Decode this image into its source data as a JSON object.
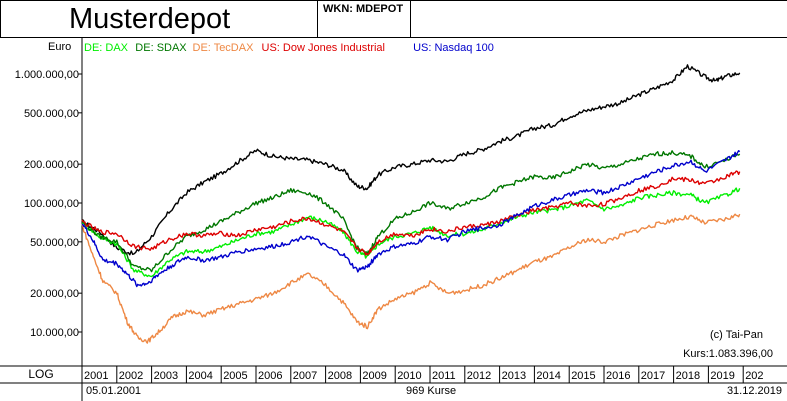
{
  "header": {
    "title": "Musterdepot",
    "wkn": "WKN: MDEPOT"
  },
  "footer": {
    "scale_label": "LOG",
    "start_date": "05.01.2001",
    "count": "969 Kurse",
    "end_date": "31.12.2019",
    "copyright": "(c) Tai-Pan",
    "kurs": "Kurs:1.083.396,00"
  },
  "chart_data": {
    "type": "line",
    "scale": "log",
    "ylabel": "Euro",
    "ylim": [
      6500,
      1600000
    ],
    "xlim": [
      2001.0,
      2020.0
    ],
    "y_ticks": [
      {
        "value": 10000,
        "label": "10.000,00"
      },
      {
        "value": 20000,
        "label": "20.000,00"
      },
      {
        "value": 50000,
        "label": "50.000,00"
      },
      {
        "value": 100000,
        "label": "100.000,00"
      },
      {
        "value": 200000,
        "label": "200.000,00"
      },
      {
        "value": 500000,
        "label": "500.000,00"
      },
      {
        "value": 1000000,
        "label": "1.000.000,00"
      }
    ],
    "x_ticks": [
      "2001",
      "2002",
      "2003",
      "2004",
      "2005",
      "2006",
      "2007",
      "2008",
      "2009",
      "2010",
      "2011",
      "2012",
      "2013",
      "2014",
      "2015",
      "2016",
      "2017",
      "2018",
      "2019",
      "202"
    ],
    "legend_position": "top-left",
    "grid": false,
    "series": [
      {
        "name": "Musterdepot",
        "color": "#000000",
        "legend": false,
        "x": [
          2001.0,
          2001.5,
          2002.0,
          2002.5,
          2003.0,
          2003.5,
          2004.0,
          2004.5,
          2005.0,
          2005.5,
          2006.0,
          2006.5,
          2007.0,
          2007.5,
          2008.0,
          2008.5,
          2008.9,
          2009.2,
          2009.5,
          2010.0,
          2010.5,
          2011.0,
          2011.5,
          2012.0,
          2012.5,
          2013.0,
          2013.5,
          2014.0,
          2014.5,
          2015.0,
          2015.5,
          2016.0,
          2016.5,
          2017.0,
          2017.5,
          2018.0,
          2018.4,
          2018.9,
          2019.2,
          2019.5,
          2019.9
        ],
        "y": [
          72000,
          60000,
          45000,
          40000,
          55000,
          85000,
          120000,
          145000,
          170000,
          210000,
          255000,
          230000,
          220000,
          215000,
          200000,
          180000,
          135000,
          130000,
          165000,
          190000,
          200000,
          215000,
          210000,
          240000,
          260000,
          300000,
          330000,
          380000,
          400000,
          470000,
          520000,
          560000,
          600000,
          690000,
          780000,
          900000,
          1150000,
          950000,
          880000,
          960000,
          1020000
        ]
      },
      {
        "name": "DE: DAX",
        "color": "#00ee00",
        "legend": true,
        "x": [
          2001.0,
          2001.5,
          2002.0,
          2002.5,
          2003.0,
          2003.5,
          2004.0,
          2004.5,
          2005.0,
          2005.5,
          2006.0,
          2006.5,
          2007.0,
          2007.5,
          2008.0,
          2008.5,
          2008.9,
          2009.2,
          2009.5,
          2010.0,
          2010.5,
          2011.0,
          2011.5,
          2012.0,
          2012.5,
          2013.0,
          2013.5,
          2014.0,
          2014.5,
          2015.0,
          2015.5,
          2016.0,
          2016.5,
          2017.0,
          2017.5,
          2018.0,
          2018.5,
          2018.9,
          2019.5,
          2019.9
        ],
        "y": [
          70000,
          55000,
          48000,
          30000,
          27000,
          36000,
          42000,
          42000,
          46000,
          52000,
          58000,
          60000,
          68000,
          78000,
          72000,
          60000,
          42000,
          38000,
          48000,
          55000,
          58000,
          65000,
          56000,
          58000,
          62000,
          70000,
          78000,
          85000,
          88000,
          95000,
          105000,
          90000,
          95000,
          110000,
          115000,
          120000,
          115000,
          100000,
          115000,
          130000
        ]
      },
      {
        "name": "DE: SDAX",
        "color": "#007700",
        "legend": true,
        "x": [
          2001.0,
          2001.5,
          2002.0,
          2002.5,
          2003.0,
          2003.5,
          2004.0,
          2004.5,
          2005.0,
          2005.5,
          2006.0,
          2006.5,
          2007.0,
          2007.5,
          2008.0,
          2008.5,
          2008.9,
          2009.2,
          2009.5,
          2010.0,
          2010.5,
          2011.0,
          2011.5,
          2012.0,
          2012.5,
          2013.0,
          2013.5,
          2014.0,
          2014.5,
          2015.0,
          2015.5,
          2016.0,
          2016.5,
          2017.0,
          2017.5,
          2018.0,
          2018.5,
          2018.9,
          2019.5,
          2019.9
        ],
        "y": [
          72000,
          55000,
          50000,
          32000,
          30000,
          42000,
          55000,
          62000,
          72000,
          85000,
          100000,
          110000,
          125000,
          120000,
          100000,
          75000,
          45000,
          40000,
          55000,
          75000,
          85000,
          100000,
          90000,
          100000,
          110000,
          130000,
          145000,
          160000,
          155000,
          175000,
          200000,
          185000,
          200000,
          220000,
          240000,
          245000,
          230000,
          190000,
          215000,
          240000
        ]
      },
      {
        "name": "DE: TecDAX",
        "color": "#ee8844",
        "legend": true,
        "x": [
          2001.0,
          2001.3,
          2001.6,
          2002.0,
          2002.3,
          2002.6,
          2002.9,
          2003.2,
          2003.6,
          2004.0,
          2004.5,
          2005.0,
          2005.5,
          2006.0,
          2006.5,
          2007.0,
          2007.5,
          2008.0,
          2008.5,
          2008.9,
          2009.2,
          2009.5,
          2010.0,
          2010.5,
          2011.0,
          2011.5,
          2012.0,
          2012.5,
          2013.0,
          2013.5,
          2014.0,
          2014.5,
          2015.0,
          2015.5,
          2016.0,
          2016.5,
          2017.0,
          2017.5,
          2018.0,
          2018.5,
          2018.9,
          2019.5,
          2019.9
        ],
        "y": [
          68000,
          40000,
          25000,
          20000,
          12000,
          9000,
          8500,
          10000,
          13000,
          14500,
          13500,
          15000,
          16500,
          18000,
          20000,
          24000,
          28000,
          23000,
          17000,
          12000,
          11000,
          15000,
          18000,
          20000,
          24000,
          20000,
          21000,
          23000,
          26000,
          30000,
          35000,
          38000,
          45000,
          52000,
          50000,
          56000,
          62000,
          68000,
          74000,
          78000,
          70000,
          75000,
          82000
        ]
      },
      {
        "name": "US: Dow Jones Industrial",
        "color": "#dd0000",
        "legend": true,
        "x": [
          2001.0,
          2001.5,
          2002.0,
          2002.5,
          2003.0,
          2003.5,
          2004.0,
          2004.5,
          2005.0,
          2005.5,
          2006.0,
          2006.5,
          2007.0,
          2007.5,
          2008.0,
          2008.5,
          2008.9,
          2009.2,
          2009.5,
          2010.0,
          2010.5,
          2011.0,
          2011.5,
          2012.0,
          2012.5,
          2013.0,
          2013.5,
          2014.0,
          2014.5,
          2015.0,
          2015.5,
          2016.0,
          2016.5,
          2017.0,
          2017.5,
          2018.0,
          2018.5,
          2018.9,
          2019.5,
          2019.9
        ],
        "y": [
          72000,
          60000,
          58000,
          46000,
          44000,
          52000,
          58000,
          56000,
          58000,
          56000,
          62000,
          65000,
          72000,
          76000,
          68000,
          60000,
          45000,
          40000,
          50000,
          58000,
          56000,
          63000,
          60000,
          65000,
          67000,
          72000,
          80000,
          88000,
          92000,
          100000,
          95000,
          98000,
          110000,
          125000,
          135000,
          155000,
          150000,
          140000,
          160000,
          175000
        ]
      },
      {
        "name": "US: Nasdaq 100",
        "color": "#0000cc",
        "legend": true,
        "x": [
          2001.0,
          2001.3,
          2001.6,
          2002.0,
          2002.3,
          2002.6,
          2002.9,
          2003.2,
          2003.6,
          2004.0,
          2004.5,
          2005.0,
          2005.5,
          2006.0,
          2006.5,
          2007.0,
          2007.5,
          2008.0,
          2008.5,
          2008.9,
          2009.2,
          2009.5,
          2010.0,
          2010.5,
          2011.0,
          2011.5,
          2012.0,
          2012.5,
          2013.0,
          2013.5,
          2014.0,
          2014.5,
          2015.0,
          2015.5,
          2016.0,
          2016.5,
          2017.0,
          2017.5,
          2018.0,
          2018.5,
          2018.9,
          2019.5,
          2019.9
        ],
        "y": [
          70000,
          52000,
          36000,
          34000,
          28000,
          23000,
          24000,
          28000,
          33000,
          38000,
          36000,
          38000,
          42000,
          44000,
          46000,
          50000,
          56000,
          46000,
          40000,
          30000,
          32000,
          40000,
          46000,
          48000,
          55000,
          52000,
          60000,
          64000,
          68000,
          80000,
          95000,
          105000,
          115000,
          125000,
          120000,
          135000,
          155000,
          175000,
          195000,
          210000,
          175000,
          215000,
          250000
        ]
      }
    ]
  }
}
